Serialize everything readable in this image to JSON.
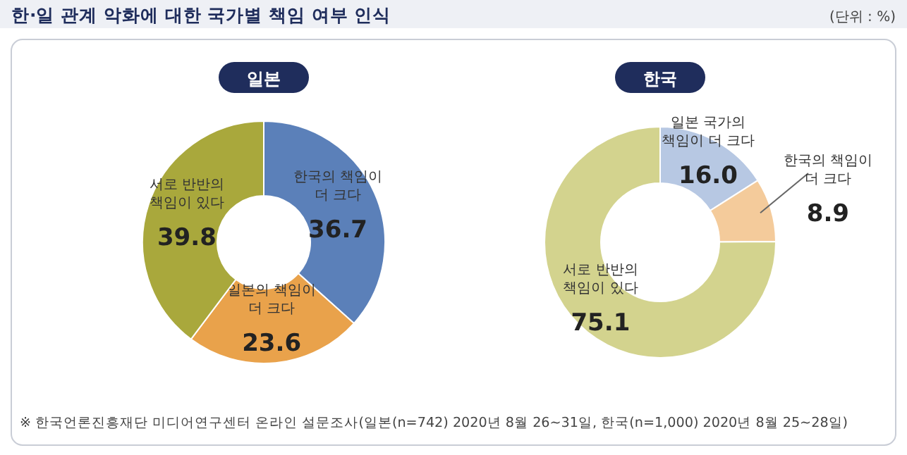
{
  "chart_data": [
    {
      "type": "donut",
      "title": "일본",
      "categories": [
        "한국의 책임이 더 크다",
        "일본의 책임이 더 크다",
        "서로 반반의 책임이 있다"
      ],
      "values": [
        36.7,
        23.6,
        39.8
      ],
      "value_labels": [
        "36.7",
        "23.6",
        "39.8"
      ],
      "colors": [
        "#5b80b9",
        "#e9a24b",
        "#a9a83c"
      ],
      "annotations": [
        "한·일 관계 악화에 대한 국가별 책임 여부 인식",
        "(단위 : %)",
        "※ 한국언론진흥재단 미디어연구센터 온라인 설문조사(일본(n=742) 2020년 8월 26~31일, 한국(n=1,000) 2020년 8월 25~28일)"
      ]
    },
    {
      "type": "donut",
      "title": "한국",
      "categories": [
        "일본 국가의 책임이 더 크다",
        "한국의 책임이 더 크다",
        "서로 반반의 책임이 있다"
      ],
      "values": [
        16.0,
        8.9,
        75.1
      ],
      "value_labels": [
        "16.0",
        "8.9",
        "75.1"
      ],
      "colors": [
        "#b7c8e3",
        "#f4cb9b",
        "#d3d38e"
      ]
    }
  ]
}
